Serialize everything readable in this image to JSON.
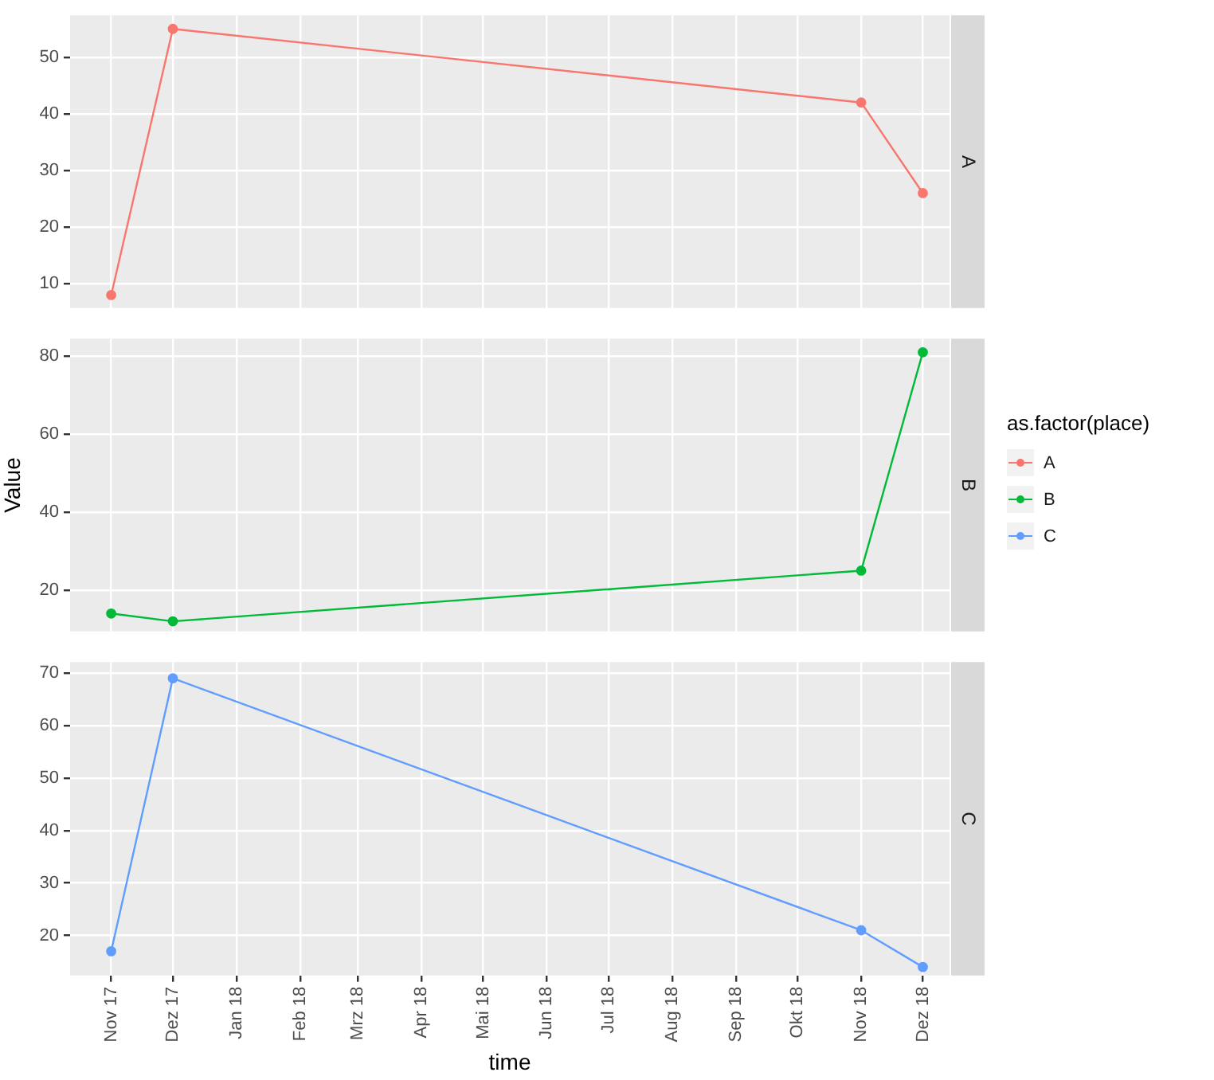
{
  "chart_data": [
    {
      "type": "line",
      "x": [
        "2017-11",
        "2017-12",
        "2018-11",
        "2018-12"
      ],
      "series": [
        {
          "name": "A",
          "color": "#f8766d",
          "values": [
            8,
            55,
            42,
            26
          ]
        }
      ],
      "xlim": [
        "2017-10-12",
        "2018-12-14"
      ],
      "xticks": [
        {
          "value": "2017-11",
          "label": null
        },
        {
          "value": "2017-12",
          "label": null
        },
        {
          "value": "2018-01",
          "label": null
        },
        {
          "value": "2018-02",
          "label": null
        },
        {
          "value": "2018-03",
          "label": null
        },
        {
          "value": "2018-04",
          "label": null
        },
        {
          "value": "2018-05",
          "label": null
        },
        {
          "value": "2018-06",
          "label": null
        },
        {
          "value": "2018-07",
          "label": null
        },
        {
          "value": "2018-08",
          "label": null
        },
        {
          "value": "2018-09",
          "label": null
        },
        {
          "value": "2018-10",
          "label": null
        },
        {
          "value": "2018-11",
          "label": null
        },
        {
          "value": "2018-12",
          "label": null
        }
      ],
      "ylim": [
        5.7,
        57.4
      ],
      "yticks": [
        10,
        20,
        30,
        40,
        50
      ],
      "grid": true,
      "marker": "circle",
      "tick_labels": "y",
      "legend": "right",
      "legend_title": "as.factor(place)"
    },
    {
      "type": "line",
      "x": [
        "2017-11",
        "2017-12",
        "2018-11",
        "2018-12"
      ],
      "series": [
        {
          "name": "B",
          "color": "#00ba38",
          "values": [
            14,
            12,
            25,
            81
          ]
        }
      ],
      "xlim": [
        "2017-10-12",
        "2018-12-14"
      ],
      "xticks": [
        {
          "value": "2017-11",
          "label": null
        },
        {
          "value": "2017-12",
          "label": null
        },
        {
          "value": "2018-01",
          "label": null
        },
        {
          "value": "2018-02",
          "label": null
        },
        {
          "value": "2018-03",
          "label": null
        },
        {
          "value": "2018-04",
          "label": null
        },
        {
          "value": "2018-05",
          "label": null
        },
        {
          "value": "2018-06",
          "label": null
        },
        {
          "value": "2018-07",
          "label": null
        },
        {
          "value": "2018-08",
          "label": null
        },
        {
          "value": "2018-09",
          "label": null
        },
        {
          "value": "2018-10",
          "label": null
        },
        {
          "value": "2018-11",
          "label": null
        },
        {
          "value": "2018-12",
          "label": null
        }
      ],
      "ylim": [
        9.4,
        84.5
      ],
      "yticks": [
        20,
        40,
        60,
        80
      ],
      "ylabel": "Value",
      "grid": true,
      "marker": "circle",
      "tick_labels": "y",
      "legend": "right"
    },
    {
      "type": "line",
      "x": [
        "2017-11",
        "2017-12",
        "2018-11",
        "2018-12"
      ],
      "series": [
        {
          "name": "C",
          "color": "#619cff",
          "values": [
            17,
            69,
            21,
            14
          ]
        }
      ],
      "xlim": [
        "2017-10-12",
        "2018-12-14"
      ],
      "xticks": [
        {
          "value": "2017-11",
          "label": "Nov 17"
        },
        {
          "value": "2017-12",
          "label": "Dez 17"
        },
        {
          "value": "2018-01",
          "label": "Jan 18"
        },
        {
          "value": "2018-02",
          "label": "Feb 18"
        },
        {
          "value": "2018-03",
          "label": "Mrz 18"
        },
        {
          "value": "2018-04",
          "label": "Apr 18"
        },
        {
          "value": "2018-05",
          "label": "Mai 18"
        },
        {
          "value": "2018-06",
          "label": "Jun 18"
        },
        {
          "value": "2018-07",
          "label": "Jul 18"
        },
        {
          "value": "2018-08",
          "label": "Aug 18"
        },
        {
          "value": "2018-09",
          "label": "Sep 18"
        },
        {
          "value": "2018-10",
          "label": "Okt 18"
        },
        {
          "value": "2018-11",
          "label": "Nov 18"
        },
        {
          "value": "2018-12",
          "label": "Dez 18"
        }
      ],
      "ylim": [
        12.4,
        72.1
      ],
      "yticks": [
        20,
        30,
        40,
        50,
        60,
        70
      ],
      "xlabel": "time",
      "grid": true,
      "marker": "circle",
      "legend": "right"
    }
  ]
}
